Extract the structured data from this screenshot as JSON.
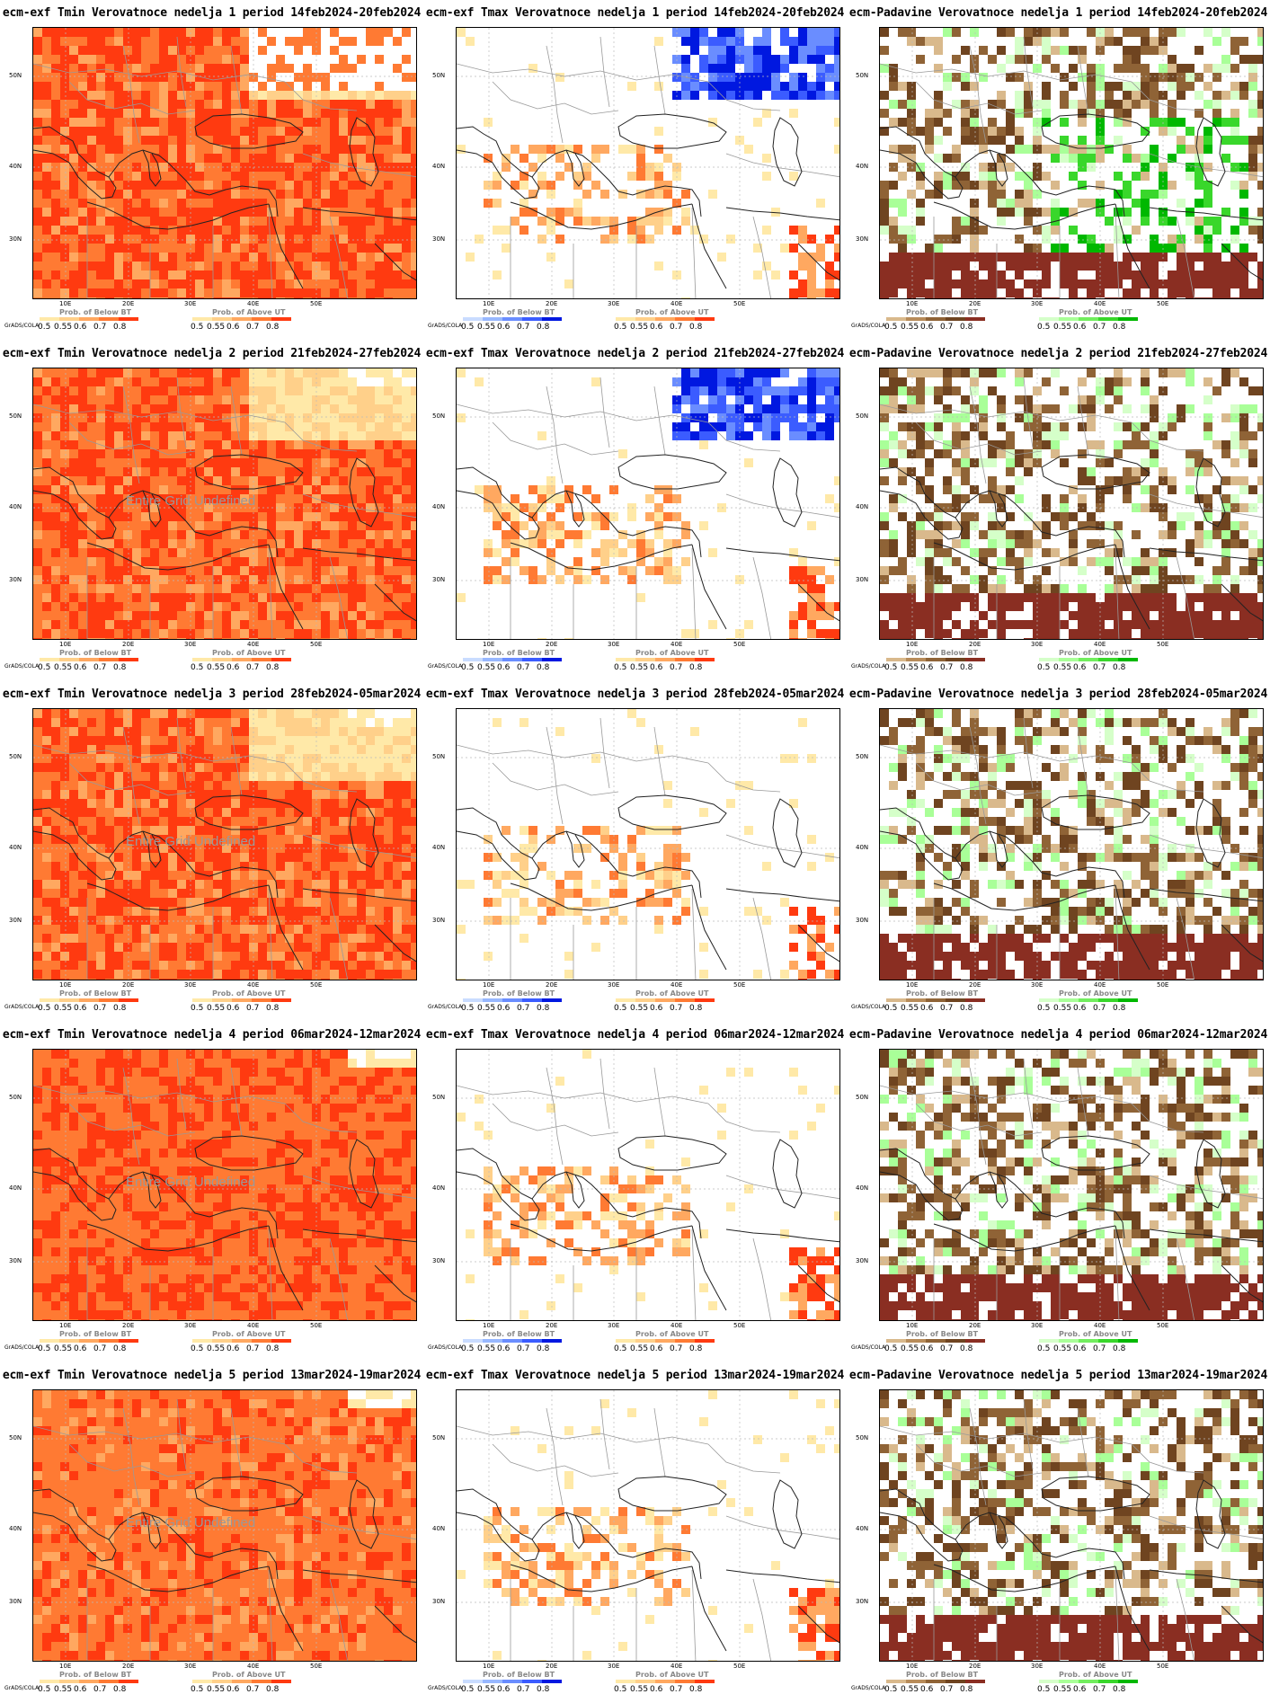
{
  "rows": [
    {
      "week": 1,
      "period": "14feb2024-20feb2024"
    },
    {
      "week": 2,
      "period": "21feb2024-27feb2024"
    },
    {
      "week": 3,
      "period": "28feb2024-05mar2024"
    },
    {
      "week": 4,
      "period": "06mar2024-12mar2024"
    },
    {
      "week": 5,
      "period": "13mar2024-19mar2024"
    }
  ],
  "panels": [
    {
      "title": "ecm-exf Tmin Verovatnoce nedelja 1 period 14feb2024-20feb2024",
      "variable": "Tmin",
      "scheme": "tmin",
      "undefined_label": ""
    },
    {
      "title": "ecm-exf Tmax Verovatnoce nedelja 1 period 14feb2024-20feb2024",
      "variable": "Tmax",
      "scheme": "tmax",
      "undefined_label": ""
    },
    {
      "title": "ecm-Padavine Verovatnoce nedelja 1 period 14feb2024-20feb2024",
      "variable": "Padavine",
      "scheme": "precip",
      "undefined_label": ""
    },
    {
      "title": "ecm-exf Tmin Verovatnoce nedelja 2 period 21feb2024-27feb2024",
      "variable": "Tmin",
      "scheme": "tmin",
      "undefined_label": "Entire Grid Undefined"
    },
    {
      "title": "ecm-exf Tmax Verovatnoce nedelja 2 period 21feb2024-27feb2024",
      "variable": "Tmax",
      "scheme": "tmax",
      "undefined_label": ""
    },
    {
      "title": "ecm-Padavine Verovatnoce nedelja 2 period 21feb2024-27feb2024",
      "variable": "Padavine",
      "scheme": "precip",
      "undefined_label": ""
    },
    {
      "title": "ecm-exf Tmin Verovatnoce nedelja 3 period 28feb2024-05mar2024",
      "variable": "Tmin",
      "scheme": "tmin",
      "undefined_label": "Entire Grid Undefined"
    },
    {
      "title": "ecm-exf Tmax Verovatnoce nedelja 3 period 28feb2024-05mar2024",
      "variable": "Tmax",
      "scheme": "tmax",
      "undefined_label": ""
    },
    {
      "title": "ecm-Padavine Verovatnoce nedelja 3 period 28feb2024-05mar2024",
      "variable": "Padavine",
      "scheme": "precip",
      "undefined_label": ""
    },
    {
      "title": "ecm-exf Tmin Verovatnoce nedelja 4 period 06mar2024-12mar2024",
      "variable": "Tmin",
      "scheme": "tmin",
      "undefined_label": "Entire Grid Undefined"
    },
    {
      "title": "ecm-exf Tmax Verovatnoce nedelja 4 period 06mar2024-12mar2024",
      "variable": "Tmax",
      "scheme": "tmax",
      "undefined_label": ""
    },
    {
      "title": "ecm-Padavine Verovatnoce nedelja 4 period 06mar2024-12mar2024",
      "variable": "Padavine",
      "scheme": "precip",
      "undefined_label": ""
    },
    {
      "title": "ecm-exf Tmin Verovatnoce nedelja 5 period 13mar2024-19mar2024",
      "variable": "Tmin",
      "scheme": "tmin",
      "undefined_label": "Entire Grid Undefined"
    },
    {
      "title": "ecm-exf Tmax Verovatnoce nedelja 5 period 13mar2024-19mar2024",
      "variable": "Tmax",
      "scheme": "tmax",
      "undefined_label": ""
    },
    {
      "title": "ecm-Padavine Verovatnoce nedelja 5 period 13mar2024-19mar2024",
      "variable": "Padavine",
      "scheme": "precip",
      "undefined_label": ""
    }
  ],
  "axes": {
    "lat_labels": [
      "50N",
      "40N",
      "30N"
    ],
    "lon_labels": [
      "10E",
      "20E",
      "30E",
      "40E",
      "50E"
    ]
  },
  "legend": {
    "below_title": "Prob. of Below BT",
    "above_title": "Prob. of Above UT",
    "ticks": [
      "0.5",
      "0.55",
      "0.6",
      "0.7",
      "0.8"
    ],
    "credit": "GrADS/COLA"
  },
  "colors": {
    "tmin": {
      "below": [
        "#ffe9a8",
        "#ffd08a",
        "#ffa860",
        "#ff7a33",
        "#ff3a10"
      ],
      "above": [
        "#ffe9a8",
        "#ffd08a",
        "#ffa860",
        "#ff7a33",
        "#ff3a10"
      ]
    },
    "tmax": {
      "below": [
        "#c9dcff",
        "#98b8ff",
        "#6a8dff",
        "#3b5cff",
        "#0018e0"
      ],
      "above": [
        "#ffe9a8",
        "#ffd08a",
        "#ffa860",
        "#ff7a33",
        "#ff3a10"
      ]
    },
    "precip": {
      "below": [
        "#d9b98c",
        "#b88c5a",
        "#8f6336",
        "#6f4420",
        "#8a2e22"
      ],
      "above": [
        "#d5ffc9",
        "#a9ff98",
        "#72ee5e",
        "#39d72b",
        "#00b800"
      ]
    },
    "base": {
      "tmin": "#ff3a10",
      "tmax": "#ffffff",
      "precip": "#ffffff"
    }
  }
}
